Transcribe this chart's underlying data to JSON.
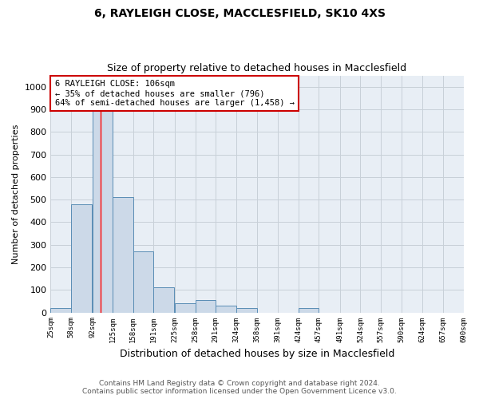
{
  "title1": "6, RAYLEIGH CLOSE, MACCLESFIELD, SK10 4XS",
  "title2": "Size of property relative to detached houses in Macclesfield",
  "xlabel": "Distribution of detached houses by size in Macclesfield",
  "ylabel": "Number of detached properties",
  "footer1": "Contains HM Land Registry data © Crown copyright and database right 2024.",
  "footer2": "Contains public sector information licensed under the Open Government Licence v3.0.",
  "annotation_line1": "6 RAYLEIGH CLOSE: 106sqm",
  "annotation_line2": "← 35% of detached houses are smaller (796)",
  "annotation_line3": "64% of semi-detached houses are larger (1,458) →",
  "bar_color": "#ccd9e8",
  "bar_edge_color": "#5a8db5",
  "grid_color": "#c8d0d8",
  "property_line_x": 106,
  "bin_edges": [
    25,
    58,
    92,
    125,
    158,
    191,
    225,
    258,
    291,
    324,
    358,
    391,
    424,
    457,
    491,
    524,
    557,
    590,
    624,
    657,
    690
  ],
  "bin_values": [
    20,
    480,
    950,
    510,
    270,
    110,
    40,
    55,
    30,
    20,
    0,
    0,
    20,
    0,
    0,
    0,
    0,
    0,
    0,
    0
  ],
  "ylim": [
    0,
    1050
  ],
  "yticks": [
    0,
    100,
    200,
    300,
    400,
    500,
    600,
    700,
    800,
    900,
    1000
  ],
  "annotation_box_color": "#ffffff",
  "annotation_box_edge": "#cc0000",
  "annotation_text_color": "#000000",
  "bg_color": "#e8eef5"
}
